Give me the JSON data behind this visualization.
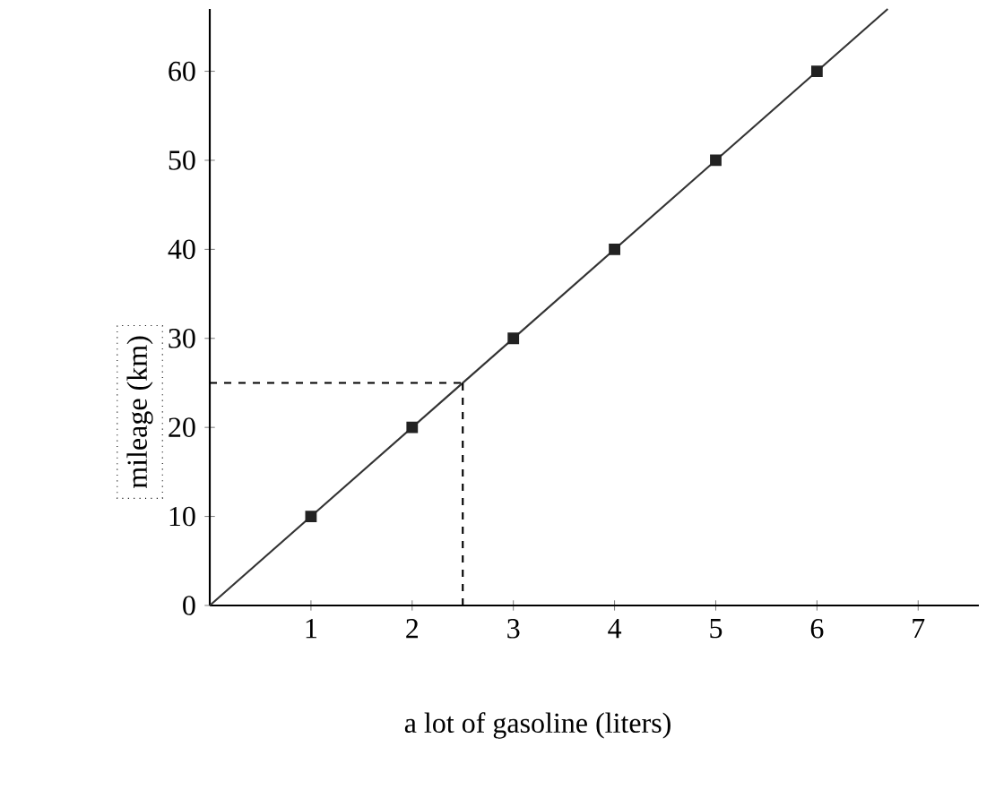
{
  "chart_data": {
    "type": "scatter",
    "xlabel": "a lot of gasoline (liters)",
    "ylabel": "mileage (km)",
    "xlim": [
      0,
      7.6
    ],
    "ylim": [
      0,
      67
    ],
    "xticks": [
      1,
      2,
      3,
      4,
      5,
      6,
      7
    ],
    "yticks": [
      0,
      10,
      20,
      30,
      40,
      50,
      60
    ],
    "grid": false,
    "marker": "square",
    "series": [
      {
        "type": "line",
        "color": "#333333",
        "x": [
          0,
          6.7
        ],
        "values": [
          0,
          67
        ],
        "marker": "none",
        "line_style": "solid"
      },
      {
        "color": "#222222",
        "x": [
          1,
          2,
          3,
          4,
          5,
          6
        ],
        "values": [
          10,
          20,
          30,
          40,
          50,
          60
        ]
      }
    ],
    "ref_lines": [
      {
        "axis": "x",
        "value": 2.5,
        "line_style": "dashed"
      },
      {
        "axis": "y",
        "value": 25,
        "line_style": "dashed"
      }
    ]
  }
}
